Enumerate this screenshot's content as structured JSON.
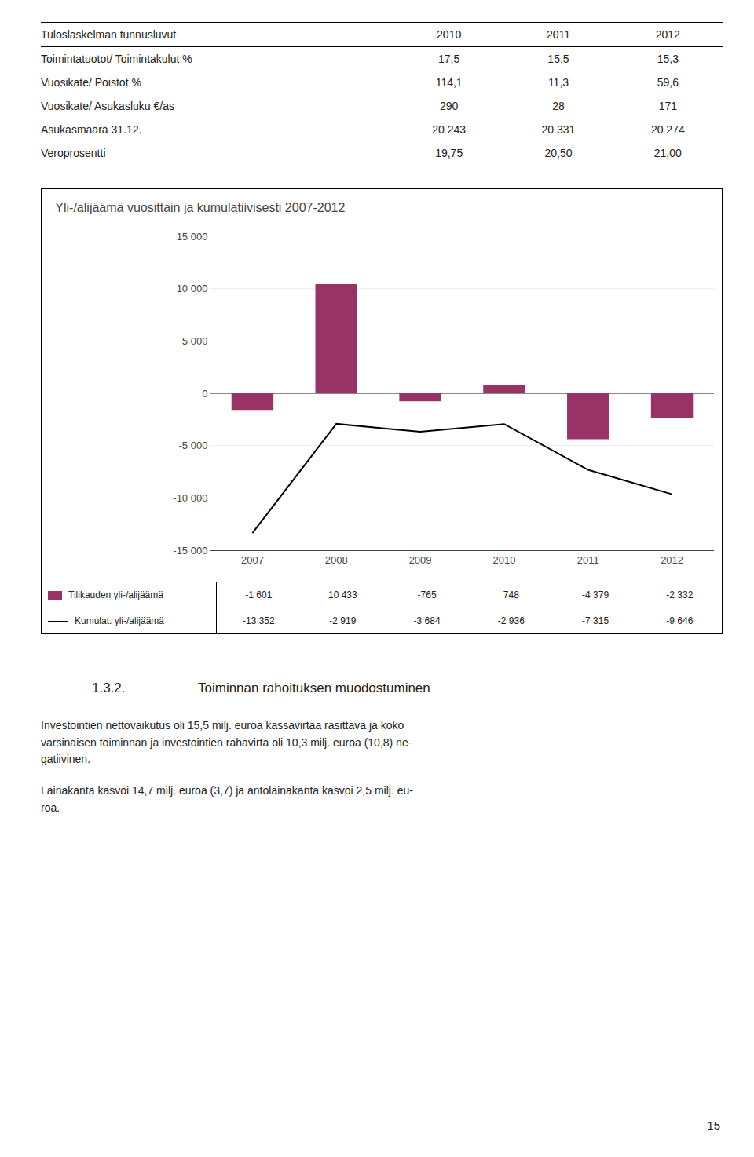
{
  "chart_data": {
    "type": "bar",
    "title": "Yli-/alijäämä vuosittain ja kumulatiivisesti 2007-2012",
    "categories": [
      "2007",
      "2008",
      "2009",
      "2010",
      "2011",
      "2012"
    ],
    "series": [
      {
        "name": "Tilikauden yli-/alijäämä",
        "type": "bar",
        "color": "#993366",
        "values": [
          -1601,
          10433,
          -765,
          748,
          -4379,
          -2332
        ],
        "value_labels": [
          "-1 601",
          "10 433",
          "-765",
          "748",
          "-4 379",
          "-2 332"
        ]
      },
      {
        "name": "Kumulat. yli-/alijäämä",
        "type": "line",
        "color": "#000000",
        "values": [
          -13352,
          -2919,
          -3684,
          -2936,
          -7315,
          -9646
        ],
        "value_labels": [
          "-13 352",
          "-2 919",
          "-3 684",
          "-2 936",
          "-7 315",
          "-9 646"
        ]
      }
    ],
    "ylim": [
      -15000,
      15000
    ],
    "yticks": [
      {
        "value": -15000,
        "label": "-15 000"
      },
      {
        "value": -10000,
        "label": "-10 000"
      },
      {
        "value": -5000,
        "label": "-5 000"
      },
      0,
      {
        "value": 5000,
        "label": "5 000"
      },
      {
        "value": 10000,
        "label": "10 000"
      },
      {
        "value": 15000,
        "label": "15 000"
      }
    ],
    "grid": true,
    "legend": "bottom"
  },
  "table": {
    "header": [
      "Tuloslaskelman tunnusluvut",
      "2010",
      "2011",
      "2012"
    ],
    "rows": [
      [
        "Toimintatuotot/ Toimintakulut  %",
        "17,5",
        "15,5",
        "15,3"
      ],
      [
        "Vuosikate/ Poistot  %",
        "114,1",
        "11,3",
        "59,6"
      ],
      [
        "Vuosikate/ Asukasluku  €/as",
        "290",
        "28",
        "171"
      ],
      [
        "Asukasmäärä 31.12.",
        "20 243",
        "20 331",
        "20 274"
      ],
      [
        "Veroprosentti",
        "19,75",
        "20,50",
        "21,00"
      ]
    ]
  },
  "section_title": [
    "1.3.2.",
    "Toiminnan rahoituksen muodostuminen"
  ],
  "paragraphs": [
    "Investointien nettovaikutus oli 15,5 milj. euroa kassavirtaa rasittava ja koko\nvarsinaisen toiminnan ja investointien rahavirta oli 10,3 milj. euroa (10,8) ne-\ngatiivinen.",
    "Lainakanta kasvoi 14,7 milj. euroa (3,7) ja antolainakanta kasvoi 2,5 milj. eu-\nroa."
  ],
  "page_number": "15"
}
